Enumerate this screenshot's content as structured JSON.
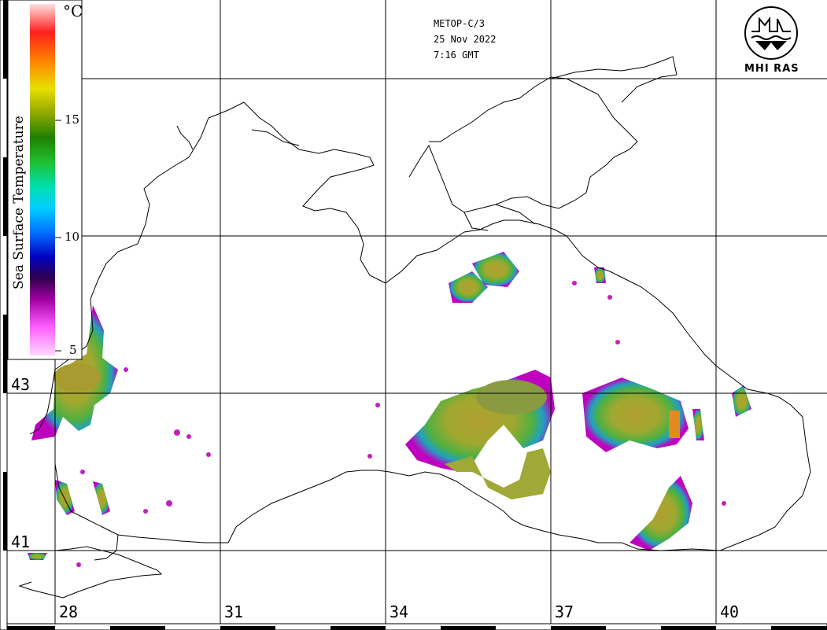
{
  "header": {
    "satellite": "METOP-C/3",
    "date": "25 Nov 2022",
    "time": "7:16 GMT"
  },
  "logo": {
    "text": "MHI RAS",
    "icon": "mhi-ras-logo-icon"
  },
  "legend": {
    "title": "Sea Surface Temperature",
    "unit": "°C",
    "ticks": [
      "15",
      "10",
      "5"
    ],
    "colors": [
      "#ffd0ff",
      "#ff60ff",
      "#a000a0",
      "#300060",
      "#0000c0",
      "#0060ff",
      "#00c0ff",
      "#00e0a0",
      "#20c020",
      "#208000",
      "#a0b000",
      "#e0e000",
      "#ff8000",
      "#ff2000",
      "#ffc0c0"
    ]
  },
  "latitudes": [
    "43",
    "41"
  ],
  "longitudes": [
    "28",
    "31",
    "34",
    "37",
    "40"
  ],
  "colors": {
    "coast": "#000000",
    "grid": "#000000",
    "background": "#ffffff"
  }
}
